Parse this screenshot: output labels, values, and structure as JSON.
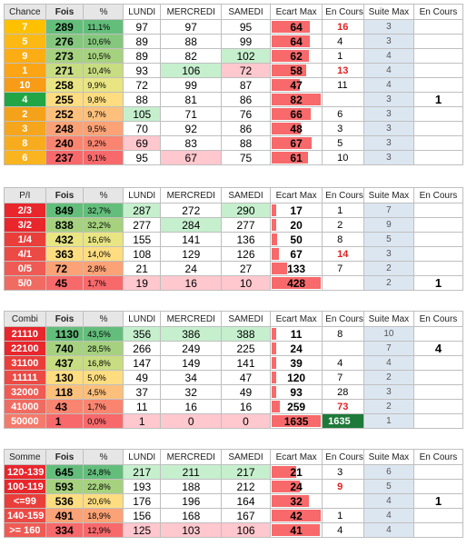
{
  "headers": {
    "fois": "Fois",
    "pct": "%",
    "lundi": "LUNDI",
    "mercredi": "MERCREDI",
    "samedi": "SAMEDI",
    "ecart": "Ecart Max",
    "encours": "En Cours",
    "suite": "Suite Max",
    "cur": "En Cours"
  },
  "sections": [
    {
      "label": "Chance",
      "current": "1",
      "current_row": 5,
      "rows": [
        {
          "label": "7",
          "fois": "289",
          "pct": "11,1%",
          "lundi": "97",
          "mercredi": "97",
          "samedi": "95",
          "ecart": "64",
          "encours": "16",
          "encours_red": true,
          "suite": "3"
        },
        {
          "label": "5",
          "fois": "276",
          "pct": "10,6%",
          "lundi": "89",
          "mercredi": "88",
          "samedi": "99",
          "ecart": "64",
          "encours": "4",
          "suite": "3"
        },
        {
          "label": "9",
          "fois": "273",
          "pct": "10,5%",
          "lundi": "89",
          "mercredi": "82",
          "samedi": "102",
          "ecart": "62",
          "encours": "1",
          "suite": "4"
        },
        {
          "label": "1",
          "fois": "271",
          "pct": "10,4%",
          "lundi": "93",
          "mercredi": "106",
          "samedi": "72",
          "ecart": "58",
          "encours": "13",
          "encours_red": true,
          "suite": "4"
        },
        {
          "label": "10",
          "fois": "258",
          "pct": "9,9%",
          "lundi": "72",
          "mercredi": "99",
          "samedi": "87",
          "ecart": "47",
          "encours": "11",
          "suite": "4"
        },
        {
          "label": "4",
          "fois": "255",
          "pct": "9,8%",
          "lundi": "88",
          "mercredi": "81",
          "samedi": "86",
          "ecart": "82",
          "encours": "",
          "suite": "3"
        },
        {
          "label": "2",
          "fois": "252",
          "pct": "9,7%",
          "lundi": "105",
          "mercredi": "71",
          "samedi": "76",
          "ecart": "66",
          "encours": "6",
          "suite": "3"
        },
        {
          "label": "3",
          "fois": "248",
          "pct": "9,5%",
          "lundi": "70",
          "mercredi": "92",
          "samedi": "86",
          "ecart": "48",
          "encours": "3",
          "suite": "3"
        },
        {
          "label": "8",
          "fois": "240",
          "pct": "9,2%",
          "lundi": "69",
          "mercredi": "83",
          "samedi": "88",
          "ecart": "67",
          "encours": "5",
          "suite": "3"
        },
        {
          "label": "6",
          "fois": "237",
          "pct": "9,1%",
          "lundi": "95",
          "mercredi": "67",
          "samedi": "75",
          "ecart": "61",
          "encours": "10",
          "suite": "3"
        }
      ]
    },
    {
      "label": "P/I",
      "current": "1",
      "current_row": 5,
      "rows": [
        {
          "label": "2/3",
          "fois": "849",
          "pct": "32,7%",
          "lundi": "287",
          "mercredi": "272",
          "samedi": "290",
          "ecart": "17",
          "encours": "1",
          "suite": "7"
        },
        {
          "label": "3/2",
          "fois": "838",
          "pct": "32,2%",
          "lundi": "277",
          "mercredi": "284",
          "samedi": "277",
          "ecart": "20",
          "encours": "2",
          "suite": "9"
        },
        {
          "label": "1/4",
          "fois": "432",
          "pct": "16,6%",
          "lundi": "155",
          "mercredi": "141",
          "samedi": "136",
          "ecart": "50",
          "encours": "8",
          "suite": "5"
        },
        {
          "label": "4/1",
          "fois": "363",
          "pct": "14,0%",
          "lundi": "108",
          "mercredi": "129",
          "samedi": "126",
          "ecart": "67",
          "encours": "14",
          "encours_red": true,
          "suite": "3"
        },
        {
          "label": "0/5",
          "fois": "72",
          "pct": "2,8%",
          "lundi": "21",
          "mercredi": "24",
          "samedi": "27",
          "ecart": "133",
          "encours": "7",
          "suite": "2"
        },
        {
          "label": "5/0",
          "fois": "45",
          "pct": "1,7%",
          "lundi": "19",
          "mercredi": "16",
          "samedi": "10",
          "ecart": "428",
          "encours": "",
          "suite": "2"
        }
      ]
    },
    {
      "label": "Combi",
      "current": "4",
      "current_row": 1,
      "rows": [
        {
          "label": "21110",
          "fois": "1130",
          "pct": "43,5%",
          "lundi": "356",
          "mercredi": "386",
          "samedi": "388",
          "ecart": "11",
          "encours": "8",
          "suite": "10"
        },
        {
          "label": "22100",
          "fois": "740",
          "pct": "28,5%",
          "lundi": "266",
          "mercredi": "249",
          "samedi": "225",
          "ecart": "24",
          "encours": "",
          "suite": "7"
        },
        {
          "label": "31100",
          "fois": "437",
          "pct": "16,8%",
          "lundi": "147",
          "mercredi": "149",
          "samedi": "141",
          "ecart": "39",
          "encours": "4",
          "suite": "4"
        },
        {
          "label": "11111",
          "fois": "130",
          "pct": "5,0%",
          "lundi": "49",
          "mercredi": "34",
          "samedi": "47",
          "ecart": "120",
          "encours": "7",
          "suite": "2"
        },
        {
          "label": "32000",
          "fois": "118",
          "pct": "4,5%",
          "lundi": "37",
          "mercredi": "32",
          "samedi": "49",
          "ecart": "93",
          "encours": "28",
          "suite": "3"
        },
        {
          "label": "41000",
          "fois": "43",
          "pct": "1,7%",
          "lundi": "11",
          "mercredi": "16",
          "samedi": "16",
          "ecart": "259",
          "encours": "73",
          "encours_red": true,
          "suite": "2"
        },
        {
          "label": "50000",
          "fois": "1",
          "pct": "0,0%",
          "lundi": "1",
          "mercredi": "0",
          "samedi": "0",
          "ecart": "1635",
          "encours": "1635",
          "encours_green": true,
          "suite": "1"
        }
      ]
    },
    {
      "label": "Somme",
      "current": "1",
      "current_row": 2,
      "rows": [
        {
          "label": "120-139",
          "fois": "645",
          "pct": "24,8%",
          "lundi": "217",
          "mercredi": "211",
          "samedi": "217",
          "ecart": "21",
          "encours": "3",
          "suite": "6"
        },
        {
          "label": "100-119",
          "fois": "593",
          "pct": "22,8%",
          "lundi": "193",
          "mercredi": "188",
          "samedi": "212",
          "ecart": "24",
          "encours": "9",
          "encours_red": true,
          "suite": "5"
        },
        {
          "label": "<=99",
          "fois": "536",
          "pct": "20,6%",
          "lundi": "176",
          "mercredi": "196",
          "samedi": "164",
          "ecart": "32",
          "encours": "",
          "suite": "4"
        },
        {
          "label": "140-159",
          "fois": "491",
          "pct": "18,9%",
          "lundi": "156",
          "mercredi": "168",
          "samedi": "167",
          "ecart": "42",
          "encours": "1",
          "suite": "4"
        },
        {
          "label": ">= 160",
          "fois": "334",
          "pct": "12,9%",
          "lundi": "125",
          "mercredi": "103",
          "samedi": "106",
          "ecart": "41",
          "encours": "4",
          "suite": "4"
        }
      ]
    }
  ],
  "colors": {
    "label_chance": [
      "#ffc000",
      "#fdb913",
      "#fcad14",
      "#fba515",
      "#f89b16",
      "#22a545",
      "#f4a21a",
      "#f5a61c",
      "#f7ac1d",
      "#f9b41f"
    ],
    "label_red": [
      "#e8262c",
      "#e8262c",
      "#ea3e3b",
      "#ec4a45",
      "#ef5b54",
      "#f06b61",
      "#f47a6b"
    ],
    "fois_scale": [
      "#63be7b",
      "#85c87d",
      "#a6d27f",
      "#c8dc81",
      "#e9e583",
      "#fedd81",
      "#fdc07c",
      "#fba276",
      "#f98570",
      "#f8696b"
    ],
    "pct_scale": [
      "#63be7b",
      "#85c87d",
      "#a6d27f",
      "#c8dc81",
      "#e9e583",
      "#fedd81",
      "#fdc07c",
      "#fba276",
      "#f98570",
      "#f8696b"
    ],
    "day_high": "#c6efce",
    "day_low": "#ffc7ce",
    "ecart_bar": "#f8696b",
    "encours_green": "#1f7a3a",
    "suite_bg": "#dce6f1"
  }
}
